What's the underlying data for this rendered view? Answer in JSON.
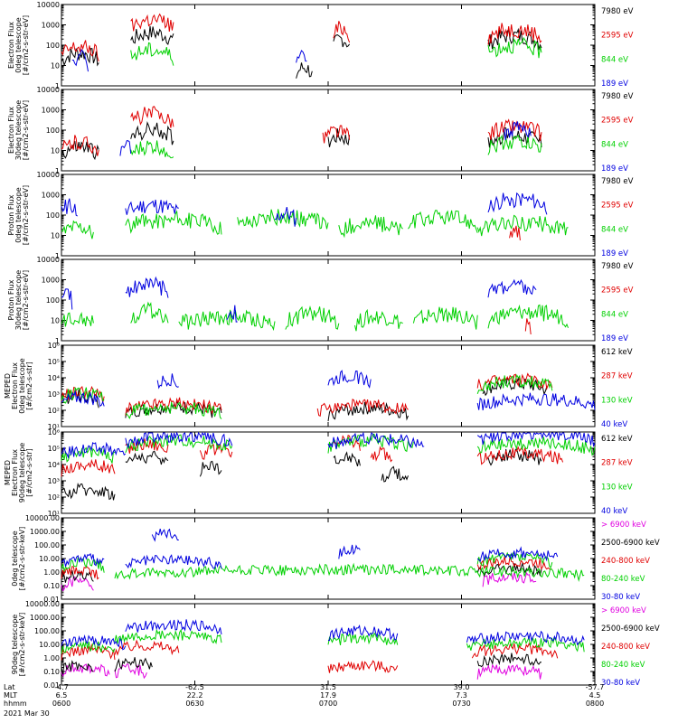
{
  "chart_data": [
    {
      "type": "line",
      "ylabel": "Electron Flux\n0deg telescope\n[#/cm2-s-str-eV]",
      "log": true,
      "ylim": [
        1,
        10000
      ],
      "ticks": [
        "1",
        "10",
        "100",
        "1000",
        "10000"
      ],
      "series": [
        {
          "name": "7980 eV",
          "color": "#000000",
          "segments": [
            [
              0.0,
              0.07,
              40
            ],
            [
              0.13,
              0.21,
              400
            ],
            [
              0.44,
              0.47,
              8
            ],
            [
              0.51,
              0.54,
              200
            ],
            [
              0.8,
              0.9,
              300
            ]
          ]
        },
        {
          "name": "2595 eV",
          "color": "#e00000",
          "segments": [
            [
              0.0,
              0.07,
              80
            ],
            [
              0.13,
              0.21,
              1800
            ],
            [
              0.51,
              0.54,
              700
            ],
            [
              0.8,
              0.9,
              600
            ]
          ]
        },
        {
          "name": "844 eV",
          "color": "#00d000",
          "segments": [
            [
              0.13,
              0.21,
              60
            ],
            [
              0.8,
              0.9,
              100
            ]
          ]
        },
        {
          "name": "189 eV",
          "color": "#0000e0",
          "segments": [
            [
              0.44,
              0.46,
              60
            ],
            [
              0.02,
              0.05,
              30
            ]
          ]
        }
      ]
    },
    {
      "type": "line",
      "ylabel": "Electron Flux\n30deg telescope\n[#/cm2-s-str-eV]",
      "log": true,
      "ylim": [
        1,
        10000
      ],
      "ticks": [
        "1",
        "10",
        "100",
        "1000",
        "10000"
      ],
      "series": [
        {
          "name": "7980 eV",
          "color": "#000000",
          "segments": [
            [
              0.0,
              0.07,
              15
            ],
            [
              0.13,
              0.21,
              100
            ],
            [
              0.5,
              0.54,
              60
            ],
            [
              0.8,
              0.9,
              60
            ]
          ]
        },
        {
          "name": "2595 eV",
          "color": "#e00000",
          "segments": [
            [
              0.0,
              0.07,
              25
            ],
            [
              0.13,
              0.21,
              600
            ],
            [
              0.49,
              0.54,
              90
            ],
            [
              0.8,
              0.9,
              150
            ]
          ]
        },
        {
          "name": "844 eV",
          "color": "#00d000",
          "segments": [
            [
              0.13,
              0.21,
              15
            ],
            [
              0.8,
              0.9,
              30
            ]
          ]
        },
        {
          "name": "189 eV",
          "color": "#0000e0",
          "segments": [
            [
              0.11,
              0.13,
              30
            ],
            [
              0.83,
              0.88,
              120
            ]
          ]
        }
      ]
    },
    {
      "type": "line",
      "ylabel": "Proton Flux\n0deg telescope\n[#/cm2-s-str-eV]",
      "log": true,
      "ylim": [
        1,
        10000
      ],
      "ticks": [
        "1",
        "10",
        "100",
        "1000",
        "10000"
      ],
      "series": [
        {
          "name": "7980 eV",
          "color": "#000000",
          "segments": []
        },
        {
          "name": "2595 eV",
          "color": "#e00000",
          "segments": [
            [
              0.84,
              0.86,
              20
            ]
          ]
        },
        {
          "name": "844 eV",
          "color": "#00d000",
          "segments": [
            [
              0.0,
              0.06,
              30
            ],
            [
              0.12,
              0.3,
              60
            ],
            [
              0.33,
              0.5,
              80
            ],
            [
              0.52,
              0.64,
              40
            ],
            [
              0.65,
              0.78,
              80
            ],
            [
              0.78,
              0.95,
              40
            ]
          ]
        },
        {
          "name": "189 eV",
          "color": "#0000e0",
          "segments": [
            [
              0.0,
              0.03,
              300
            ],
            [
              0.12,
              0.22,
              300
            ],
            [
              0.4,
              0.44,
              120
            ],
            [
              0.8,
              0.91,
              600
            ]
          ]
        }
      ]
    },
    {
      "type": "line",
      "ylabel": "Proton Flux\n30deg telescope\n[#/cm2-s-str-eV]",
      "log": true,
      "ylim": [
        1,
        10000
      ],
      "ticks": [
        "1",
        "10",
        "100",
        "1000",
        "10000"
      ],
      "series": [
        {
          "name": "7980 eV",
          "color": "#000000",
          "segments": []
        },
        {
          "name": "2595 eV",
          "color": "#e00000",
          "segments": [
            [
              0.87,
              0.88,
              10
            ]
          ]
        },
        {
          "name": "844 eV",
          "color": "#00d000",
          "segments": [
            [
              0.0,
              0.06,
              15
            ],
            [
              0.13,
              0.2,
              30
            ],
            [
              0.22,
              0.4,
              15
            ],
            [
              0.42,
              0.52,
              20
            ],
            [
              0.55,
              0.64,
              15
            ],
            [
              0.66,
              0.78,
              20
            ],
            [
              0.8,
              0.95,
              25
            ]
          ]
        },
        {
          "name": "189 eV",
          "color": "#0000e0",
          "segments": [
            [
              0.0,
              0.02,
              200
            ],
            [
              0.12,
              0.2,
              600
            ],
            [
              0.31,
              0.33,
              30
            ],
            [
              0.8,
              0.89,
              500
            ]
          ]
        }
      ]
    },
    {
      "type": "line",
      "ylabel": "MEPED\nElectron Flux\n0deg telescope\n[#/cm2-s-str]",
      "log": true,
      "ylim": [
        10,
        1000000
      ],
      "ticks": [
        "10¹",
        "10²",
        "10³",
        "10⁴",
        "10⁵",
        "10⁶"
      ],
      "series": [
        {
          "name": "612 keV",
          "color": "#000000",
          "segments": [
            [
              0.0,
              0.07,
              800
            ],
            [
              0.12,
              0.3,
              150
            ],
            [
              0.5,
              0.65,
              130
            ],
            [
              0.79,
              0.91,
              4000
            ]
          ]
        },
        {
          "name": "287 keV",
          "color": "#e00000",
          "segments": [
            [
              0.0,
              0.08,
              1500
            ],
            [
              0.12,
              0.3,
              250
            ],
            [
              0.48,
              0.65,
              200
            ],
            [
              0.78,
              0.92,
              8000
            ]
          ]
        },
        {
          "name": "130 keV",
          "color": "#00d000",
          "segments": [
            [
              0.0,
              0.08,
              1200
            ],
            [
              0.12,
              0.3,
              150
            ],
            [
              0.78,
              0.92,
              6000
            ]
          ]
        },
        {
          "name": "40 keV",
          "color": "#0000e0",
          "segments": [
            [
              0.0,
              0.08,
              600
            ],
            [
              0.18,
              0.22,
              8000
            ],
            [
              0.5,
              0.58,
              12000
            ],
            [
              0.78,
              1.0,
              500
            ]
          ]
        }
      ]
    },
    {
      "type": "line",
      "ylabel": "MEPED\nElectron Flux\n90deg telescope\n[#/cm2-s-str]",
      "log": true,
      "ylim": [
        10,
        1000000
      ],
      "ticks": [
        "10¹",
        "10²",
        "10³",
        "10⁴",
        "10⁵",
        "10⁶"
      ],
      "series": [
        {
          "name": "612 keV",
          "color": "#000000",
          "segments": [
            [
              0.0,
              0.1,
              300
            ],
            [
              0.12,
              0.2,
              30000
            ],
            [
              0.26,
              0.3,
              10000
            ],
            [
              0.51,
              0.56,
              30000
            ],
            [
              0.6,
              0.65,
              3000
            ],
            [
              0.8,
              0.9,
              40000
            ]
          ]
        },
        {
          "name": "287 keV",
          "color": "#e00000",
          "segments": [
            [
              0.0,
              0.1,
              10000
            ],
            [
              0.12,
              0.2,
              200000
            ],
            [
              0.26,
              0.32,
              80000
            ],
            [
              0.51,
              0.56,
              300000
            ],
            [
              0.58,
              0.62,
              50000
            ],
            [
              0.78,
              0.94,
              50000
            ]
          ]
        },
        {
          "name": "130 keV",
          "color": "#00d000",
          "segments": [
            [
              0.0,
              0.1,
              60000
            ],
            [
              0.12,
              0.32,
              300000
            ],
            [
              0.5,
              0.66,
              300000
            ],
            [
              0.78,
              1.0,
              200000
            ]
          ]
        },
        {
          "name": "40 keV",
          "color": "#0000e0",
          "segments": [
            [
              0.0,
              0.12,
              100000
            ],
            [
              0.12,
              0.32,
              600000
            ],
            [
              0.5,
              0.68,
              400000
            ],
            [
              0.78,
              1.0,
              800000
            ]
          ]
        }
      ]
    },
    {
      "type": "line",
      "ylabel": "0deg telescope\n[#/cm2-s-str-keV]",
      "log": true,
      "ylim": [
        0.01,
        10000
      ],
      "ticks": [
        "0.01",
        "0.10",
        "1.00",
        "10.00",
        "100.00",
        "1000.00",
        "10000.00"
      ],
      "series": [
        {
          "name": "> 6900 keV",
          "color": "#e000e0",
          "segments": [
            [
              0.0,
              0.06,
              0.2
            ],
            [
              0.79,
              0.89,
              0.5
            ]
          ]
        },
        {
          "name": "2500-6900 keV",
          "color": "#000000",
          "segments": [
            [
              0.0,
              0.06,
              0.6
            ],
            [
              0.78,
              0.9,
              2
            ]
          ]
        },
        {
          "name": "240-800 keV",
          "color": "#e00000",
          "segments": [
            [
              0.0,
              0.07,
              1.5
            ],
            [
              0.78,
              0.92,
              6
            ]
          ]
        },
        {
          "name": "80-240 keV",
          "color": "#00d000",
          "segments": [
            [
              0.0,
              0.08,
              5
            ],
            [
              0.1,
              0.98,
              1.5
            ],
            [
              0.78,
              0.92,
              12
            ]
          ]
        },
        {
          "name": "30-80 keV",
          "color": "#0000e0",
          "segments": [
            [
              0.0,
              0.08,
              10
            ],
            [
              0.12,
              0.3,
              8
            ],
            [
              0.17,
              0.22,
              800
            ],
            [
              0.52,
              0.56,
              50
            ],
            [
              0.78,
              0.93,
              25
            ]
          ]
        }
      ]
    },
    {
      "type": "line",
      "ylabel": "90deg telescope\n[#/cm2-s-str-keV]",
      "log": true,
      "ylim": [
        0.01,
        10000
      ],
      "ticks": [
        "0.01",
        "0.10",
        "1.00",
        "10.00",
        "100.00",
        "1000.00",
        "10000.00"
      ],
      "series": [
        {
          "name": "> 6900 keV",
          "color": "#e000e0",
          "segments": [
            [
              0.0,
              0.09,
              0.2
            ],
            [
              0.1,
              0.16,
              0.15
            ],
            [
              0.78,
              0.9,
              0.15
            ]
          ]
        },
        {
          "name": "2500-6900 keV",
          "color": "#000000",
          "segments": [
            [
              0.0,
              0.06,
              0.3
            ],
            [
              0.1,
              0.17,
              0.5
            ],
            [
              0.78,
              0.9,
              1
            ]
          ]
        },
        {
          "name": "240-800 keV",
          "color": "#e00000",
          "segments": [
            [
              0.0,
              0.1,
              4
            ],
            [
              0.1,
              0.22,
              8
            ],
            [
              0.5,
              0.63,
              0.3
            ],
            [
              0.77,
              0.93,
              5
            ]
          ]
        },
        {
          "name": "80-240 keV",
          "color": "#00d000",
          "segments": [
            [
              0.0,
              0.1,
              8
            ],
            [
              0.1,
              0.3,
              50
            ],
            [
              0.5,
              0.63,
              30
            ],
            [
              0.76,
              0.98,
              15
            ]
          ]
        },
        {
          "name": "30-80 keV",
          "color": "#0000e0",
          "segments": [
            [
              0.0,
              0.12,
              20
            ],
            [
              0.12,
              0.3,
              300
            ],
            [
              0.5,
              0.63,
              100
            ],
            [
              0.76,
              0.98,
              40
            ]
          ]
        }
      ]
    }
  ],
  "xaxis": {
    "row_labels": [
      "Lat",
      "MLT",
      "hhmm"
    ],
    "tick_fracs": [
      0,
      0.25,
      0.5,
      0.75,
      1.0
    ],
    "ticks": [
      {
        "lat": "-4.7",
        "mlt": "6.5",
        "hhmm": "0600"
      },
      {
        "lat": "-62.5",
        "mlt": "22.2",
        "hhmm": "0630"
      },
      {
        "lat": "31.5",
        "mlt": "17.9",
        "hhmm": "0700"
      },
      {
        "lat": "39.0",
        "mlt": "7.3",
        "hhmm": "0730"
      },
      {
        "lat": "-57.7",
        "mlt": "4.5",
        "hhmm": "0800"
      }
    ],
    "date": "2021 Mar 30"
  }
}
